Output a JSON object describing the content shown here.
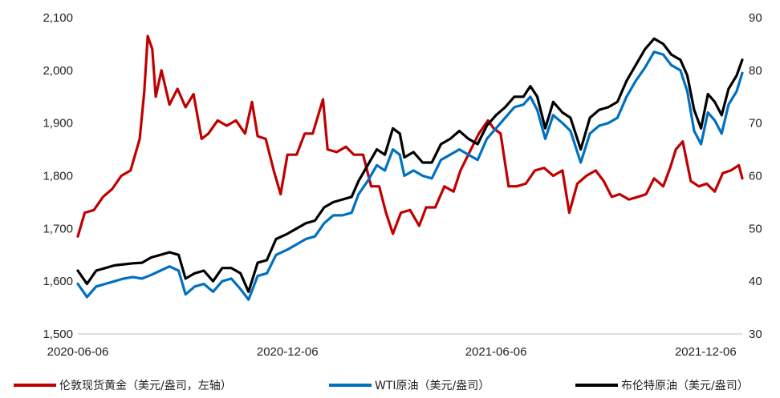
{
  "chart_data": {
    "type": "line",
    "left_axis": {
      "ylim": [
        1500,
        2100
      ],
      "ticks": [
        "1,500",
        "1,600",
        "1,700",
        "1,800",
        "1,900",
        "2,000",
        "2,100"
      ]
    },
    "right_axis": {
      "ylim": [
        30,
        90
      ],
      "ticks": [
        "30",
        "40",
        "50",
        "60",
        "70",
        "80",
        "90"
      ]
    },
    "x_ticks": [
      "2020-06-06",
      "2020-12-06",
      "2021-06-06",
      "2021-12-06"
    ],
    "x_range": [
      "2020-06-06",
      "2022-01-07"
    ],
    "series": [
      {
        "name": "伦敦现货黄金（美元/盎司，左轴）",
        "axis": "left",
        "color": "#C00000",
        "points": [
          [
            "2020-06-06",
            1685
          ],
          [
            "2020-06-12",
            1730
          ],
          [
            "2020-06-20",
            1735
          ],
          [
            "2020-06-28",
            1760
          ],
          [
            "2020-07-06",
            1775
          ],
          [
            "2020-07-14",
            1800
          ],
          [
            "2020-07-22",
            1810
          ],
          [
            "2020-07-30",
            1870
          ],
          [
            "2020-08-03",
            1960
          ],
          [
            "2020-08-06",
            2065
          ],
          [
            "2020-08-10",
            2040
          ],
          [
            "2020-08-13",
            1950
          ],
          [
            "2020-08-18",
            2000
          ],
          [
            "2020-08-25",
            1935
          ],
          [
            "2020-09-01",
            1965
          ],
          [
            "2020-09-08",
            1930
          ],
          [
            "2020-09-15",
            1955
          ],
          [
            "2020-09-22",
            1870
          ],
          [
            "2020-09-28",
            1880
          ],
          [
            "2020-10-06",
            1905
          ],
          [
            "2020-10-14",
            1895
          ],
          [
            "2020-10-22",
            1905
          ],
          [
            "2020-10-30",
            1880
          ],
          [
            "2020-11-05",
            1940
          ],
          [
            "2020-11-10",
            1875
          ],
          [
            "2020-11-17",
            1870
          ],
          [
            "2020-11-24",
            1810
          ],
          [
            "2020-11-30",
            1765
          ],
          [
            "2020-12-06",
            1840
          ],
          [
            "2020-12-14",
            1840
          ],
          [
            "2020-12-21",
            1880
          ],
          [
            "2020-12-28",
            1880
          ],
          [
            "2021-01-06",
            1945
          ],
          [
            "2021-01-10",
            1850
          ],
          [
            "2021-01-18",
            1845
          ],
          [
            "2021-01-26",
            1855
          ],
          [
            "2021-02-02",
            1840
          ],
          [
            "2021-02-10",
            1840
          ],
          [
            "2021-02-17",
            1780
          ],
          [
            "2021-02-24",
            1780
          ],
          [
            "2021-03-02",
            1730
          ],
          [
            "2021-03-08",
            1690
          ],
          [
            "2021-03-15",
            1730
          ],
          [
            "2021-03-23",
            1735
          ],
          [
            "2021-03-31",
            1705
          ],
          [
            "2021-04-06",
            1740
          ],
          [
            "2021-04-14",
            1740
          ],
          [
            "2021-04-22",
            1780
          ],
          [
            "2021-04-30",
            1770
          ],
          [
            "2021-05-06",
            1810
          ],
          [
            "2021-05-14",
            1845
          ],
          [
            "2021-05-22",
            1880
          ],
          [
            "2021-05-30",
            1905
          ],
          [
            "2021-06-04",
            1890
          ],
          [
            "2021-06-10",
            1880
          ],
          [
            "2021-06-17",
            1780
          ],
          [
            "2021-06-24",
            1780
          ],
          [
            "2021-07-02",
            1785
          ],
          [
            "2021-07-10",
            1810
          ],
          [
            "2021-07-18",
            1815
          ],
          [
            "2021-07-26",
            1800
          ],
          [
            "2021-08-03",
            1810
          ],
          [
            "2021-08-09",
            1730
          ],
          [
            "2021-08-16",
            1785
          ],
          [
            "2021-08-24",
            1800
          ],
          [
            "2021-09-01",
            1810
          ],
          [
            "2021-09-08",
            1790
          ],
          [
            "2021-09-15",
            1760
          ],
          [
            "2021-09-22",
            1765
          ],
          [
            "2021-09-30",
            1755
          ],
          [
            "2021-10-08",
            1760
          ],
          [
            "2021-10-15",
            1765
          ],
          [
            "2021-10-22",
            1795
          ],
          [
            "2021-10-30",
            1780
          ],
          [
            "2021-11-05",
            1815
          ],
          [
            "2021-11-10",
            1850
          ],
          [
            "2021-11-16",
            1865
          ],
          [
            "2021-11-23",
            1790
          ],
          [
            "2021-11-30",
            1780
          ],
          [
            "2021-12-07",
            1785
          ],
          [
            "2021-12-14",
            1770
          ],
          [
            "2021-12-21",
            1805
          ],
          [
            "2021-12-28",
            1810
          ],
          [
            "2022-01-04",
            1820
          ],
          [
            "2022-01-07",
            1795
          ]
        ]
      },
      {
        "name": "WTI原油（美元/盎司）",
        "axis": "right",
        "color": "#0070C0",
        "points": [
          [
            "2020-06-06",
            39.5
          ],
          [
            "2020-06-14",
            37
          ],
          [
            "2020-06-22",
            39
          ],
          [
            "2020-06-30",
            39.5
          ],
          [
            "2020-07-08",
            40
          ],
          [
            "2020-07-16",
            40.5
          ],
          [
            "2020-07-24",
            40.8
          ],
          [
            "2020-08-01",
            40.5
          ],
          [
            "2020-08-09",
            41.2
          ],
          [
            "2020-08-17",
            42
          ],
          [
            "2020-08-25",
            42.8
          ],
          [
            "2020-09-02",
            42
          ],
          [
            "2020-09-08",
            37.5
          ],
          [
            "2020-09-16",
            39
          ],
          [
            "2020-09-24",
            39.5
          ],
          [
            "2020-10-02",
            38
          ],
          [
            "2020-10-10",
            40
          ],
          [
            "2020-10-18",
            40.5
          ],
          [
            "2020-10-26",
            38.5
          ],
          [
            "2020-11-02",
            36.5
          ],
          [
            "2020-11-10",
            41
          ],
          [
            "2020-11-18",
            41.5
          ],
          [
            "2020-11-26",
            45
          ],
          [
            "2020-12-06",
            46
          ],
          [
            "2020-12-14",
            47
          ],
          [
            "2020-12-22",
            48
          ],
          [
            "2020-12-30",
            48.5
          ],
          [
            "2021-01-07",
            51
          ],
          [
            "2021-01-15",
            52.5
          ],
          [
            "2021-01-23",
            52.5
          ],
          [
            "2021-01-31",
            53
          ],
          [
            "2021-02-06",
            56.5
          ],
          [
            "2021-02-14",
            59
          ],
          [
            "2021-02-22",
            62
          ],
          [
            "2021-03-01",
            61
          ],
          [
            "2021-03-08",
            65
          ],
          [
            "2021-03-14",
            64
          ],
          [
            "2021-03-18",
            60
          ],
          [
            "2021-03-26",
            61
          ],
          [
            "2021-04-03",
            60
          ],
          [
            "2021-04-11",
            59.5
          ],
          [
            "2021-04-19",
            63
          ],
          [
            "2021-04-27",
            64
          ],
          [
            "2021-05-05",
            65
          ],
          [
            "2021-05-13",
            64
          ],
          [
            "2021-05-21",
            63
          ],
          [
            "2021-05-29",
            67
          ],
          [
            "2021-06-06",
            69
          ],
          [
            "2021-06-14",
            71
          ],
          [
            "2021-06-22",
            73
          ],
          [
            "2021-06-30",
            73.5
          ],
          [
            "2021-07-06",
            75
          ],
          [
            "2021-07-12",
            72.5
          ],
          [
            "2021-07-19",
            67
          ],
          [
            "2021-07-26",
            71.5
          ],
          [
            "2021-08-03",
            70
          ],
          [
            "2021-08-10",
            68.5
          ],
          [
            "2021-08-19",
            62.5
          ],
          [
            "2021-08-27",
            68
          ],
          [
            "2021-09-04",
            69.5
          ],
          [
            "2021-09-12",
            70
          ],
          [
            "2021-09-20",
            71
          ],
          [
            "2021-09-28",
            75
          ],
          [
            "2021-10-06",
            78
          ],
          [
            "2021-10-14",
            80.5
          ],
          [
            "2021-10-22",
            83.5
          ],
          [
            "2021-10-30",
            83
          ],
          [
            "2021-11-06",
            81
          ],
          [
            "2021-11-14",
            80
          ],
          [
            "2021-11-20",
            76
          ],
          [
            "2021-11-26",
            68.5
          ],
          [
            "2021-12-02",
            66
          ],
          [
            "2021-12-08",
            72
          ],
          [
            "2021-12-14",
            70.5
          ],
          [
            "2021-12-20",
            68
          ],
          [
            "2021-12-26",
            73.5
          ],
          [
            "2022-01-02",
            76
          ],
          [
            "2022-01-07",
            79.5
          ]
        ]
      },
      {
        "name": "布伦特原油（美元/盎司）",
        "axis": "right",
        "color": "#000000",
        "points": [
          [
            "2020-06-06",
            42
          ],
          [
            "2020-06-14",
            39.5
          ],
          [
            "2020-06-22",
            42
          ],
          [
            "2020-06-30",
            42.5
          ],
          [
            "2020-07-08",
            43
          ],
          [
            "2020-07-16",
            43.2
          ],
          [
            "2020-07-24",
            43.4
          ],
          [
            "2020-08-01",
            43.5
          ],
          [
            "2020-08-09",
            44.5
          ],
          [
            "2020-08-17",
            45
          ],
          [
            "2020-08-25",
            45.5
          ],
          [
            "2020-09-02",
            45
          ],
          [
            "2020-09-08",
            40.5
          ],
          [
            "2020-09-16",
            41.5
          ],
          [
            "2020-09-24",
            42
          ],
          [
            "2020-10-02",
            40
          ],
          [
            "2020-10-10",
            42.5
          ],
          [
            "2020-10-18",
            42.5
          ],
          [
            "2020-10-26",
            41.5
          ],
          [
            "2020-11-02",
            38
          ],
          [
            "2020-11-10",
            43.5
          ],
          [
            "2020-11-18",
            44
          ],
          [
            "2020-11-26",
            48
          ],
          [
            "2020-12-06",
            49
          ],
          [
            "2020-12-14",
            50
          ],
          [
            "2020-12-22",
            51
          ],
          [
            "2020-12-30",
            51.5
          ],
          [
            "2021-01-07",
            54
          ],
          [
            "2021-01-15",
            55
          ],
          [
            "2021-01-23",
            55.5
          ],
          [
            "2021-01-31",
            56
          ],
          [
            "2021-02-06",
            59
          ],
          [
            "2021-02-14",
            62
          ],
          [
            "2021-02-22",
            65
          ],
          [
            "2021-03-01",
            64
          ],
          [
            "2021-03-08",
            69
          ],
          [
            "2021-03-14",
            68
          ],
          [
            "2021-03-18",
            63.5
          ],
          [
            "2021-03-26",
            64.5
          ],
          [
            "2021-04-03",
            62.5
          ],
          [
            "2021-04-11",
            62.5
          ],
          [
            "2021-04-19",
            66
          ],
          [
            "2021-04-27",
            67
          ],
          [
            "2021-05-05",
            68.5
          ],
          [
            "2021-05-13",
            67
          ],
          [
            "2021-05-21",
            66
          ],
          [
            "2021-05-29",
            69.5
          ],
          [
            "2021-06-06",
            71.5
          ],
          [
            "2021-06-14",
            73
          ],
          [
            "2021-06-22",
            75
          ],
          [
            "2021-06-30",
            75
          ],
          [
            "2021-07-06",
            77
          ],
          [
            "2021-07-12",
            75
          ],
          [
            "2021-07-19",
            69
          ],
          [
            "2021-07-26",
            74
          ],
          [
            "2021-08-03",
            72
          ],
          [
            "2021-08-10",
            71
          ],
          [
            "2021-08-19",
            65
          ],
          [
            "2021-08-27",
            71
          ],
          [
            "2021-09-04",
            72.5
          ],
          [
            "2021-09-12",
            73
          ],
          [
            "2021-09-20",
            74
          ],
          [
            "2021-09-28",
            78
          ],
          [
            "2021-10-06",
            81
          ],
          [
            "2021-10-14",
            84
          ],
          [
            "2021-10-22",
            86
          ],
          [
            "2021-10-30",
            85
          ],
          [
            "2021-11-06",
            83
          ],
          [
            "2021-11-14",
            82
          ],
          [
            "2021-11-20",
            79
          ],
          [
            "2021-11-26",
            72.5
          ],
          [
            "2021-12-02",
            69
          ],
          [
            "2021-12-08",
            75.5
          ],
          [
            "2021-12-14",
            74
          ],
          [
            "2021-12-20",
            71.5
          ],
          [
            "2021-12-26",
            76.5
          ],
          [
            "2022-01-02",
            79
          ],
          [
            "2022-01-07",
            82
          ]
        ]
      }
    ],
    "legend_placement": "bottom",
    "grid": false
  }
}
